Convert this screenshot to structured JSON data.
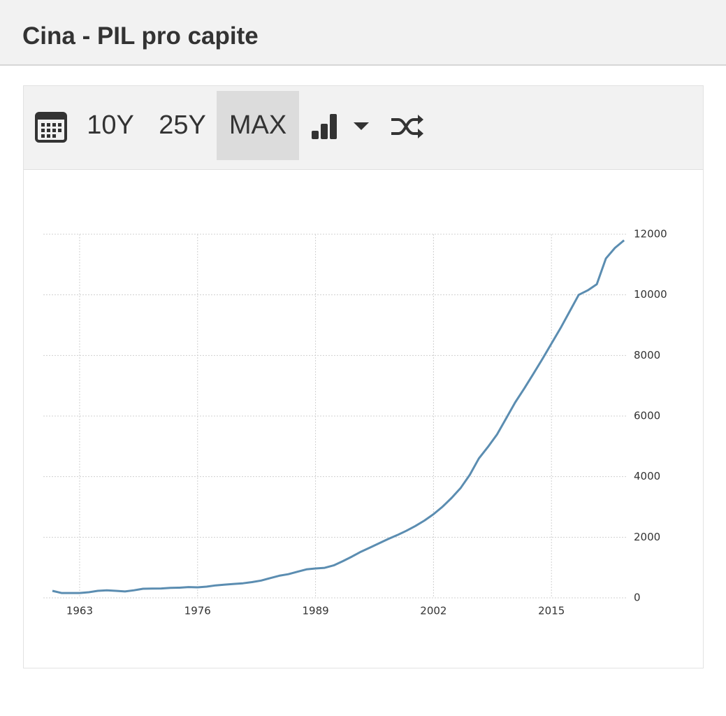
{
  "header": {
    "title": "Cina - PIL pro capite"
  },
  "toolbar": {
    "buttons": [
      "10Y",
      "25Y",
      "MAX"
    ]
  },
  "chart_data": {
    "type": "line",
    "x": [
      1960,
      1961,
      1962,
      1963,
      1964,
      1965,
      1966,
      1967,
      1968,
      1969,
      1970,
      1971,
      1972,
      1973,
      1974,
      1975,
      1976,
      1977,
      1978,
      1979,
      1980,
      1981,
      1982,
      1983,
      1984,
      1985,
      1986,
      1987,
      1988,
      1989,
      1990,
      1991,
      1992,
      1993,
      1994,
      1995,
      1996,
      1997,
      1998,
      1999,
      2000,
      2001,
      2002,
      2003,
      2004,
      2005,
      2006,
      2007,
      2008,
      2009,
      2010,
      2011,
      2012,
      2013,
      2014,
      2015,
      2016,
      2017,
      2018,
      2019,
      2020,
      2021,
      2022,
      2023
    ],
    "values": [
      230,
      160,
      160,
      160,
      185,
      230,
      250,
      230,
      210,
      250,
      300,
      305,
      310,
      330,
      335,
      355,
      345,
      370,
      410,
      435,
      460,
      480,
      520,
      570,
      650,
      730,
      780,
      860,
      940,
      970,
      990,
      1070,
      1210,
      1360,
      1520,
      1660,
      1800,
      1940,
      2070,
      2210,
      2370,
      2550,
      2760,
      3010,
      3300,
      3630,
      4060,
      4600,
      4980,
      5390,
      5920,
      6450,
      6910,
      7390,
      7880,
      8390,
      8900,
      9450,
      10000,
      10150,
      10350,
      11200,
      11550,
      11800
    ],
    "color": "#5b8db1",
    "xlim": [
      1959,
      2023.3
    ],
    "xticks": [
      1963,
      1976,
      1989,
      2002,
      2015
    ],
    "ylim": [
      0,
      12000
    ],
    "yticks": [
      0,
      2000,
      4000,
      6000,
      8000,
      10000,
      12000
    ],
    "grid": true
  }
}
